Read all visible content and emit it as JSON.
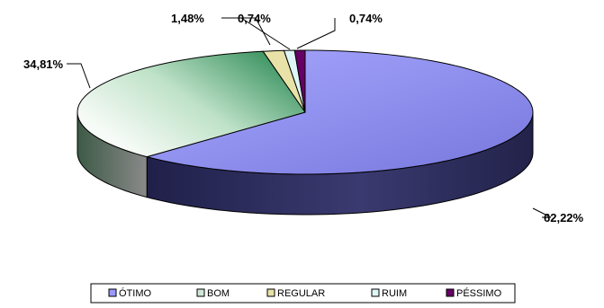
{
  "chart_data": {
    "type": "pie",
    "variant": "3d",
    "title": "",
    "labels": [
      "ÓTIMO",
      "BOM",
      "REGULAR",
      "RUIM",
      "PÉSSIMO"
    ],
    "values": [
      62.22,
      34.81,
      1.48,
      0.74,
      0.74
    ],
    "value_labels": [
      "62,22%",
      "34,81%",
      "1,48%",
      "0,74%",
      "0,74%"
    ],
    "colors": [
      "#9999ff",
      "#2e8b57",
      "#e8e2a8",
      "#dff6f6",
      "#660066"
    ],
    "legend": {
      "position": "bottom",
      "entries": [
        "ÓTIMO",
        "BOM",
        "REGULAR",
        "RUIM",
        "PÉSSIMO"
      ]
    }
  }
}
